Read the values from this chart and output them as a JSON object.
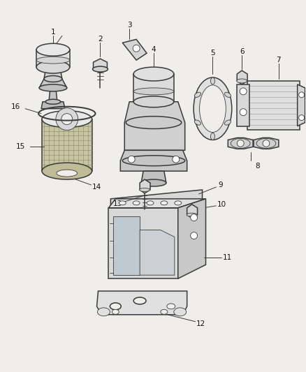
{
  "bg_color": "#f0eeeb",
  "line_color": "#3a3a3a",
  "lw_main": 1.1,
  "lw_thin": 0.6,
  "text_color": "#111111",
  "label_fs": 7.5,
  "figsize": [
    4.38,
    5.33
  ],
  "dpi": 100,
  "xlim": [
    0,
    438
  ],
  "ylim": [
    0,
    533
  ]
}
